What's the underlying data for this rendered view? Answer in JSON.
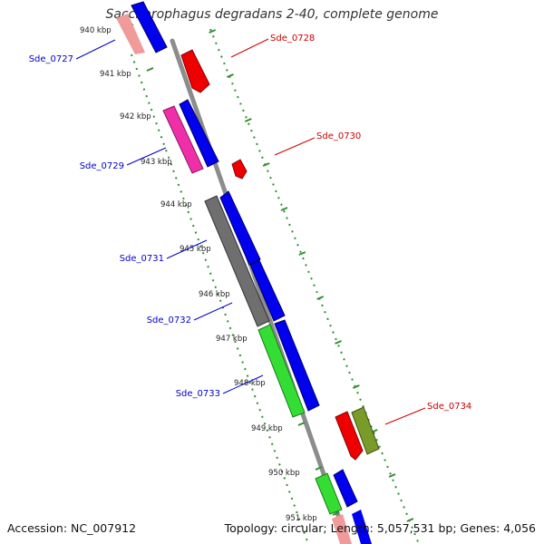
{
  "title": "Saccharophagus degradans 2-40, complete genome",
  "accession_label": "Accession: NC_007912",
  "summary_label": "Topology: circular; Length: 5,057,531 bp; Genes: 4,056",
  "colors": {
    "backbone": "#8c8c8c",
    "ticks": "#2f8f2f",
    "label_blue": "#0000cc",
    "label_red": "#cc0000"
  },
  "ticks": [
    {
      "label": "940 kbp"
    },
    {
      "label": "941 kbp"
    },
    {
      "label": "942 kbp"
    },
    {
      "label": "943 kbp"
    },
    {
      "label": "944 kbp"
    },
    {
      "label": "945 kbp"
    },
    {
      "label": "946 kbp"
    },
    {
      "label": "947 kbp"
    },
    {
      "label": "948 kbp"
    },
    {
      "label": "949 kbp"
    },
    {
      "label": "950 kbp"
    },
    {
      "label": "951 kbp"
    }
  ],
  "gene_labels": [
    {
      "text": "Sde_0727",
      "color": "blue"
    },
    {
      "text": "Sde_0728",
      "color": "red"
    },
    {
      "text": "Sde_0729",
      "color": "blue"
    },
    {
      "text": "Sde_0730",
      "color": "red"
    },
    {
      "text": "Sde_0731",
      "color": "blue"
    },
    {
      "text": "Sde_0732",
      "color": "blue"
    },
    {
      "text": "Sde_0733",
      "color": "blue"
    },
    {
      "text": "Sde_0734",
      "color": "red"
    }
  ]
}
